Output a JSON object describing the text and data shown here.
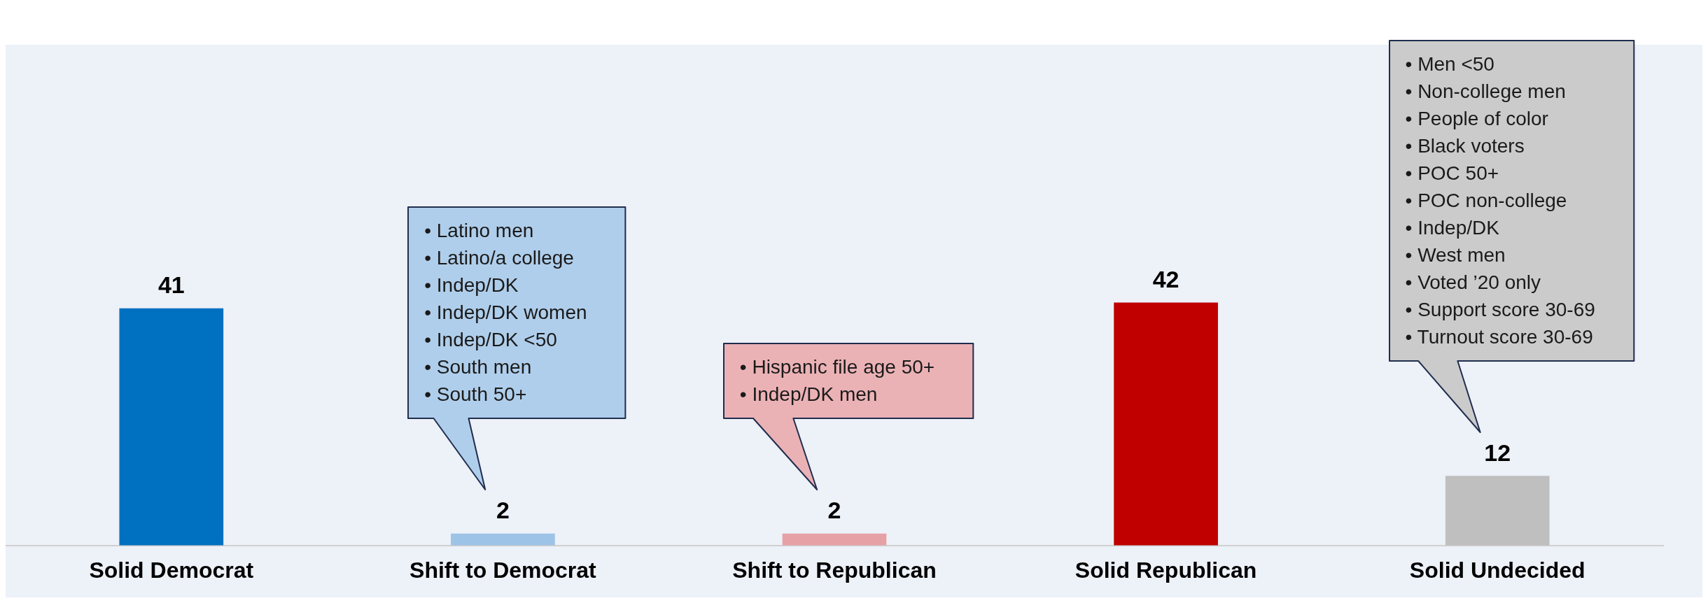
{
  "chart_data": {
    "type": "bar",
    "categories": [
      "Solid Democrat",
      "Shift to Democrat",
      "Shift to Republican",
      "Solid Republican",
      "Solid Undecided"
    ],
    "values": [
      41,
      2,
      2,
      42,
      12
    ],
    "colors": [
      "#0070c0",
      "#9dc3e6",
      "#e6a1a6",
      "#c00000",
      "#bfbfbf"
    ],
    "data_labels": true,
    "grid": false,
    "legend": false,
    "annotations": [
      {
        "text": "• Latino men\n• Latino/a college\n• Indep/DK\n• Indep/DK women\n• Indep/DK <50\n• South men\n• South 50+"
      },
      {
        "text": "• Hispanic file age 50+\n• Indep/DK men"
      },
      {
        "text": "• Men <50\n• Non-college men\n• People of color\n• Black voters\n• POC 50+\n• POC non-college\n• Indep/DK\n• West men\n• Voted ’20 only\n• Support score 30-69\n• Turnout score 30-69"
      }
    ]
  }
}
